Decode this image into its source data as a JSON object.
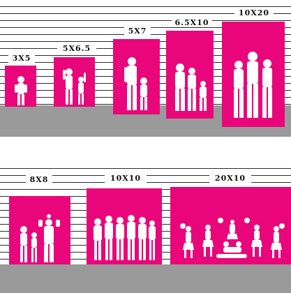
{
  "backdrops_top": [
    {
      "label": "3X5"
    },
    {
      "label": "5X6.5"
    },
    {
      "label": "5X7"
    },
    {
      "label": "6.5X10"
    },
    {
      "label": "10X20"
    }
  ],
  "backdrops_bottom": [
    {
      "label": "8X8"
    },
    {
      "label": "10X10"
    },
    {
      "label": "20X10"
    }
  ],
  "colors": {
    "backdrop": "#e8067a",
    "floor": "#9a9a9a",
    "lines": "#2b2b2b"
  },
  "icons": [
    "family-silhouette-icon",
    "team-silhouette-icon",
    "cheerleaders-silhouette-icon"
  ]
}
